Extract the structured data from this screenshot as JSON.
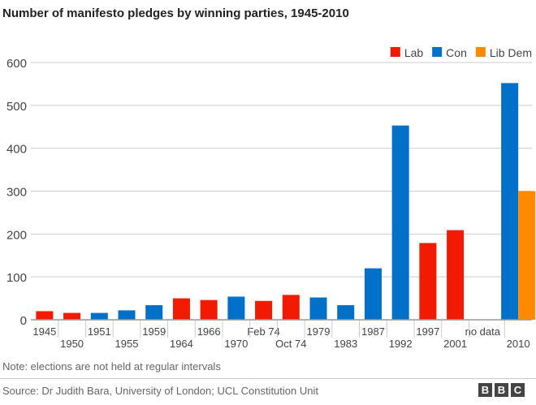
{
  "title": "Number of manifesto pledges by winning parties, 1945-2010",
  "note": "Note: elections are not held at regular intervals",
  "source": "Source: Dr Judith Bara, University of London; UCL Constitution Unit",
  "logo": "BBC",
  "chart_data": {
    "type": "bar",
    "title": "Number of manifesto pledges by winning parties, 1945-2010",
    "ylim": [
      0,
      600
    ],
    "yticks": [
      0,
      100,
      200,
      300,
      400,
      500,
      600
    ],
    "grid": true,
    "legend_placement": "top-right",
    "legend": [
      {
        "name": "Lab",
        "color": "#f21a00"
      },
      {
        "name": "Con",
        "color": "#0070c8"
      },
      {
        "name": "Lib Dem",
        "color": "#ff8a00"
      }
    ],
    "categories": [
      "1945",
      "1950",
      "1951",
      "1955",
      "1959",
      "1964",
      "1966",
      "1970",
      "Feb 74",
      "Oct 74",
      "1979",
      "1983",
      "1987",
      "1992",
      "1997",
      "2001",
      "no data",
      "2010"
    ],
    "bars": [
      [
        {
          "party": "Lab",
          "value": 20
        }
      ],
      [
        {
          "party": "Lab",
          "value": 16
        }
      ],
      [
        {
          "party": "Con",
          "value": 16
        }
      ],
      [
        {
          "party": "Con",
          "value": 22
        }
      ],
      [
        {
          "party": "Con",
          "value": 34
        }
      ],
      [
        {
          "party": "Lab",
          "value": 50
        }
      ],
      [
        {
          "party": "Lab",
          "value": 46
        }
      ],
      [
        {
          "party": "Con",
          "value": 54
        }
      ],
      [
        {
          "party": "Lab",
          "value": 44
        }
      ],
      [
        {
          "party": "Lab",
          "value": 58
        }
      ],
      [
        {
          "party": "Con",
          "value": 52
        }
      ],
      [
        {
          "party": "Con",
          "value": 34
        }
      ],
      [
        {
          "party": "Con",
          "value": 120
        }
      ],
      [
        {
          "party": "Con",
          "value": 453
        }
      ],
      [
        {
          "party": "Lab",
          "value": 179
        }
      ],
      [
        {
          "party": "Lab",
          "value": 209
        }
      ],
      [],
      [
        {
          "party": "Con",
          "value": 552
        },
        {
          "party": "Lib Dem",
          "value": 300
        }
      ]
    ]
  }
}
